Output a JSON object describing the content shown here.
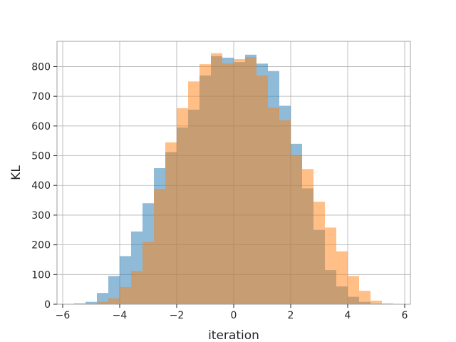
{
  "chart_data": {
    "type": "bar",
    "title": "",
    "xlabel": "iteration",
    "ylabel": "KL",
    "xlim": [
      -6.2,
      6.2
    ],
    "ylim": [
      0,
      885
    ],
    "grid": true,
    "legend": "none",
    "x_ticks": [
      -6,
      -4,
      -2,
      0,
      2,
      4,
      6
    ],
    "x_tick_labels": [
      "−6",
      "−4",
      "−2",
      "0",
      "2",
      "4",
      "6"
    ],
    "y_ticks": [
      0,
      100,
      200,
      300,
      400,
      500,
      600,
      700,
      800
    ],
    "y_tick_labels": [
      "0",
      "100",
      "200",
      "300",
      "400",
      "500",
      "600",
      "700",
      "800"
    ],
    "series": [
      {
        "color": "#1f77b4",
        "opacity": 0.5,
        "bins": [
          [
            -5.6,
            -5.2,
            3
          ],
          [
            -5.2,
            -4.8,
            8
          ],
          [
            -4.8,
            -4.4,
            38
          ],
          [
            -4.4,
            -4.0,
            95
          ],
          [
            -4.0,
            -3.6,
            162
          ],
          [
            -3.6,
            -3.2,
            245
          ],
          [
            -3.2,
            -2.8,
            340
          ],
          [
            -2.8,
            -2.4,
            458
          ],
          [
            -2.4,
            -2.0,
            512
          ],
          [
            -2.0,
            -1.6,
            595
          ],
          [
            -1.6,
            -1.2,
            655
          ],
          [
            -1.2,
            -0.8,
            770
          ],
          [
            -0.8,
            -0.4,
            835
          ],
          [
            -0.4,
            0.0,
            830
          ],
          [
            0.0,
            0.4,
            815
          ],
          [
            0.4,
            0.8,
            840
          ],
          [
            0.8,
            1.2,
            810
          ],
          [
            1.2,
            1.6,
            785
          ],
          [
            1.6,
            2.0,
            668
          ],
          [
            2.0,
            2.4,
            540
          ],
          [
            2.4,
            2.8,
            390
          ],
          [
            2.8,
            3.2,
            250
          ],
          [
            3.2,
            3.6,
            115
          ],
          [
            3.6,
            4.0,
            60
          ],
          [
            4.0,
            4.4,
            25
          ],
          [
            4.4,
            4.8,
            8
          ],
          [
            4.8,
            5.2,
            2
          ]
        ]
      },
      {
        "color": "#ff7f0e",
        "opacity": 0.5,
        "bins": [
          [
            -4.8,
            -4.4,
            8
          ],
          [
            -4.4,
            -4.0,
            20
          ],
          [
            -4.0,
            -3.6,
            58
          ],
          [
            -3.6,
            -3.2,
            112
          ],
          [
            -3.2,
            -2.8,
            210
          ],
          [
            -2.8,
            -2.4,
            388
          ],
          [
            -2.4,
            -2.0,
            545
          ],
          [
            -2.0,
            -1.6,
            660
          ],
          [
            -1.6,
            -1.2,
            750
          ],
          [
            -1.2,
            -0.8,
            808
          ],
          [
            -0.8,
            -0.4,
            845
          ],
          [
            -0.4,
            0.0,
            810
          ],
          [
            0.0,
            0.4,
            825
          ],
          [
            0.4,
            0.8,
            832
          ],
          [
            0.8,
            1.2,
            770
          ],
          [
            1.2,
            1.6,
            662
          ],
          [
            1.6,
            2.0,
            620
          ],
          [
            2.0,
            2.4,
            502
          ],
          [
            2.4,
            2.8,
            455
          ],
          [
            2.8,
            3.2,
            345
          ],
          [
            3.2,
            3.6,
            258
          ],
          [
            3.6,
            4.0,
            178
          ],
          [
            4.0,
            4.4,
            95
          ],
          [
            4.4,
            4.8,
            45
          ],
          [
            4.8,
            5.2,
            12
          ],
          [
            5.2,
            5.6,
            3
          ]
        ]
      }
    ]
  }
}
